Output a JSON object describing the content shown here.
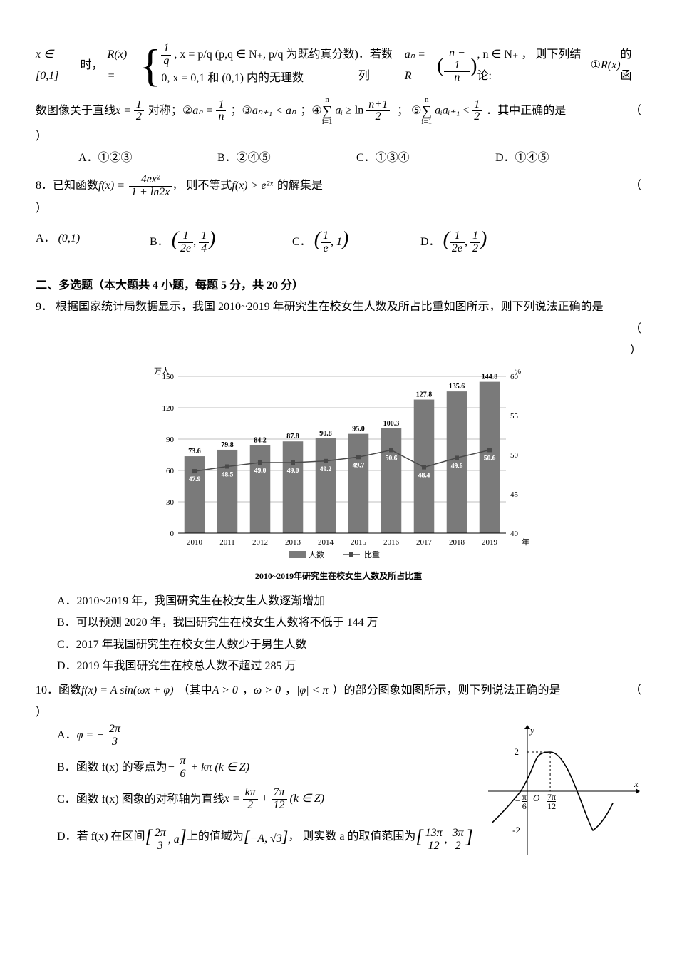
{
  "q7": {
    "prefix_x": "x ∈ [0,1]",
    "prefix_shi": "时，",
    "Rx": "R(x) =",
    "case1_left": "1",
    "case1_right": "q",
    "case1_cond": ", x = p/q (p,q ∈ N₊, p/q 为既约真分数)",
    "case2": "0, x = 0,1 和 (0,1) 内的无理数",
    "after1": "．若数列",
    "an_eq": "aₙ = R",
    "frac_n1": "n − 1",
    "frac_n": "n",
    "after2": ", n ∈ N₊ ，  则下列结论:",
    "circ1": "①",
    "Rx_fn": "R(x)",
    "line2a": "的函",
    "line2_start": "数图像关于直线",
    "x_half": "x = 1/2",
    "line2_b": "对称；",
    "circ2": "②",
    "an_1n": "aₙ = 1/n",
    "semi": "；",
    "circ3": "③",
    "an1_lt_an": "aₙ₊₁ < aₙ",
    "circ4": "④",
    "sum1": "∑aᵢ ≥ ln (n+1)/2",
    "circ5": "⑤",
    "sum2": "∑aᵢaᵢ₊₁ < 1/2",
    "tail": "．其中正确的是",
    "paren": "（",
    "paren2": "）",
    "choices": [
      "A．①②③",
      "B．②④⑤",
      "C．①③④",
      "D．①④⑤"
    ]
  },
  "q8": {
    "num": "8．",
    "text1": "已知函数",
    "fx": "f(x) =",
    "num4ex2": "4ex²",
    "den": "1 + ln2x",
    "text2": "， 则不等式",
    "ineq": "f(x) > e²ˣ",
    "text3": "的解集是",
    "choices": {
      "A": "A．",
      "A_val": "(0,1)",
      "B": "B．",
      "B_val": "(1/2e, 1/4)",
      "C": "C．",
      "C_val": "(1/e, 1)",
      "D": "D．",
      "D_val": "(1/2e, 1/2)"
    }
  },
  "section2": {
    "title": "二、多选题（本大题共 4 小题，每题 5 分，共 20 分）"
  },
  "q9": {
    "num": "9．",
    "text": "根据国家统计局数据显示，我国 2010~2019 年研究生在校女生人数及所占比重如图所示，则下列说法正确的是",
    "paren_open": "（",
    "paren_close": "）",
    "chart": {
      "y1_label": "万人",
      "y2_label": "%",
      "x_label": "年",
      "years": [
        "2010",
        "2011",
        "2012",
        "2013",
        "2014",
        "2015",
        "2016",
        "2017",
        "2018",
        "2019"
      ],
      "bars": [
        73.6,
        79.8,
        84.2,
        87.8,
        90.8,
        95.0,
        100.3,
        127.8,
        135.6,
        144.8
      ],
      "line": [
        47.9,
        48.5,
        49.0,
        49.0,
        49.2,
        49.7,
        50.6,
        48.4,
        49.6,
        50.6
      ],
      "y1_ticks": [
        0,
        30,
        60,
        90,
        120,
        150
      ],
      "y2_ticks": [
        40,
        45,
        50,
        55,
        60
      ],
      "y1_range": [
        0,
        150
      ],
      "y2_range": [
        40,
        60
      ],
      "bar_color": "#7a7a7a",
      "line_color": "#4a4a4a",
      "grid_color": "#bfbfbf",
      "bg_color": "#ffffff",
      "legend_bar": "人数",
      "legend_line": "比重",
      "caption": "2010~2019年研究生在校女生人数及所占比重",
      "label_fontsize": 11,
      "title_fontsize": 12
    },
    "opts": {
      "A": "A．2010~2019 年，我国研究生在校女生人数逐渐增加",
      "B": "B．可以预测 2020 年，我国研究生在校女生人数将不低于 144 万",
      "C": "C．2017 年我国研究生在校女生人数少于男生人数",
      "D": "D．2019 年我国研究生在校总人数不超过 285 万"
    }
  },
  "q10": {
    "num": "10．",
    "text1": "函数",
    "fx": "f(x) = A sin(ωx + φ)",
    "text2": "（其中",
    "A_gt0": "A > 0",
    "comma": "，",
    "w_gt0": "ω > 0",
    "phi_lt_pi": "|φ| < π",
    "text3": "）的部分图象如图所示，则下列说法正确的是",
    "paren": "（",
    "paren2": "）",
    "opts": {
      "A_pre": "A．",
      "A_val": "φ = − 2π/3",
      "B_pre": "B．",
      "B_txt": "函数 f(x) 的零点为",
      "B_val": "− π/6 + kπ (k ∈ Z)",
      "C_pre": "C．",
      "C_txt": "函数 f(x) 图象的对称轴为直线",
      "C_val": "x = kπ/2 + 7π/12 (k ∈ Z)",
      "D_pre": "D．",
      "D_txt1": "若 f(x) 在区间",
      "D_int1": "[2π/3, a]",
      "D_txt2": "上的值域为",
      "D_int2": "[−A, √3]",
      "D_txt3": "， 则实数 a 的取值范围为",
      "D_int3": "[13π/12, 3π/2]"
    },
    "graph": {
      "amp": 2,
      "neg_amp": -2,
      "x_left_tick": "−π/6",
      "x_right_tick": "7π/12",
      "axis_color": "#000000",
      "curve_color": "#000000",
      "y_label": "y",
      "x_label": "x",
      "origin": "O"
    }
  }
}
